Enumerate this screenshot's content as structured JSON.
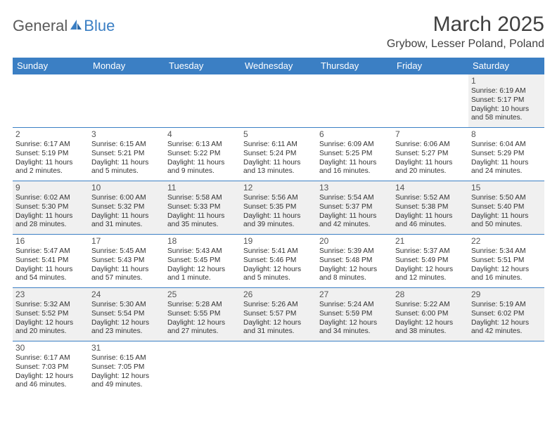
{
  "logo": {
    "text_a": "General",
    "text_b": "Blue"
  },
  "title": "March 2025",
  "location": "Grybow, Lesser Poland, Poland",
  "weekdays": [
    "Sunday",
    "Monday",
    "Tuesday",
    "Wednesday",
    "Thursday",
    "Friday",
    "Saturday"
  ],
  "colors": {
    "header_bg": "#3b7fc4",
    "grey_row": "#f0f0f0"
  },
  "weeks": [
    {
      "shade": "grey",
      "days": [
        null,
        null,
        null,
        null,
        null,
        null,
        {
          "n": "1",
          "sr": "Sunrise: 6:19 AM",
          "ss": "Sunset: 5:17 PM",
          "d1": "Daylight: 10 hours",
          "d2": "and 58 minutes."
        }
      ]
    },
    {
      "shade": "white",
      "days": [
        {
          "n": "2",
          "sr": "Sunrise: 6:17 AM",
          "ss": "Sunset: 5:19 PM",
          "d1": "Daylight: 11 hours",
          "d2": "and 2 minutes."
        },
        {
          "n": "3",
          "sr": "Sunrise: 6:15 AM",
          "ss": "Sunset: 5:21 PM",
          "d1": "Daylight: 11 hours",
          "d2": "and 5 minutes."
        },
        {
          "n": "4",
          "sr": "Sunrise: 6:13 AM",
          "ss": "Sunset: 5:22 PM",
          "d1": "Daylight: 11 hours",
          "d2": "and 9 minutes."
        },
        {
          "n": "5",
          "sr": "Sunrise: 6:11 AM",
          "ss": "Sunset: 5:24 PM",
          "d1": "Daylight: 11 hours",
          "d2": "and 13 minutes."
        },
        {
          "n": "6",
          "sr": "Sunrise: 6:09 AM",
          "ss": "Sunset: 5:25 PM",
          "d1": "Daylight: 11 hours",
          "d2": "and 16 minutes."
        },
        {
          "n": "7",
          "sr": "Sunrise: 6:06 AM",
          "ss": "Sunset: 5:27 PM",
          "d1": "Daylight: 11 hours",
          "d2": "and 20 minutes."
        },
        {
          "n": "8",
          "sr": "Sunrise: 6:04 AM",
          "ss": "Sunset: 5:29 PM",
          "d1": "Daylight: 11 hours",
          "d2": "and 24 minutes."
        }
      ]
    },
    {
      "shade": "grey",
      "days": [
        {
          "n": "9",
          "sr": "Sunrise: 6:02 AM",
          "ss": "Sunset: 5:30 PM",
          "d1": "Daylight: 11 hours",
          "d2": "and 28 minutes."
        },
        {
          "n": "10",
          "sr": "Sunrise: 6:00 AM",
          "ss": "Sunset: 5:32 PM",
          "d1": "Daylight: 11 hours",
          "d2": "and 31 minutes."
        },
        {
          "n": "11",
          "sr": "Sunrise: 5:58 AM",
          "ss": "Sunset: 5:33 PM",
          "d1": "Daylight: 11 hours",
          "d2": "and 35 minutes."
        },
        {
          "n": "12",
          "sr": "Sunrise: 5:56 AM",
          "ss": "Sunset: 5:35 PM",
          "d1": "Daylight: 11 hours",
          "d2": "and 39 minutes."
        },
        {
          "n": "13",
          "sr": "Sunrise: 5:54 AM",
          "ss": "Sunset: 5:37 PM",
          "d1": "Daylight: 11 hours",
          "d2": "and 42 minutes."
        },
        {
          "n": "14",
          "sr": "Sunrise: 5:52 AM",
          "ss": "Sunset: 5:38 PM",
          "d1": "Daylight: 11 hours",
          "d2": "and 46 minutes."
        },
        {
          "n": "15",
          "sr": "Sunrise: 5:50 AM",
          "ss": "Sunset: 5:40 PM",
          "d1": "Daylight: 11 hours",
          "d2": "and 50 minutes."
        }
      ]
    },
    {
      "shade": "white",
      "days": [
        {
          "n": "16",
          "sr": "Sunrise: 5:47 AM",
          "ss": "Sunset: 5:41 PM",
          "d1": "Daylight: 11 hours",
          "d2": "and 54 minutes."
        },
        {
          "n": "17",
          "sr": "Sunrise: 5:45 AM",
          "ss": "Sunset: 5:43 PM",
          "d1": "Daylight: 11 hours",
          "d2": "and 57 minutes."
        },
        {
          "n": "18",
          "sr": "Sunrise: 5:43 AM",
          "ss": "Sunset: 5:45 PM",
          "d1": "Daylight: 12 hours",
          "d2": "and 1 minute."
        },
        {
          "n": "19",
          "sr": "Sunrise: 5:41 AM",
          "ss": "Sunset: 5:46 PM",
          "d1": "Daylight: 12 hours",
          "d2": "and 5 minutes."
        },
        {
          "n": "20",
          "sr": "Sunrise: 5:39 AM",
          "ss": "Sunset: 5:48 PM",
          "d1": "Daylight: 12 hours",
          "d2": "and 8 minutes."
        },
        {
          "n": "21",
          "sr": "Sunrise: 5:37 AM",
          "ss": "Sunset: 5:49 PM",
          "d1": "Daylight: 12 hours",
          "d2": "and 12 minutes."
        },
        {
          "n": "22",
          "sr": "Sunrise: 5:34 AM",
          "ss": "Sunset: 5:51 PM",
          "d1": "Daylight: 12 hours",
          "d2": "and 16 minutes."
        }
      ]
    },
    {
      "shade": "grey",
      "days": [
        {
          "n": "23",
          "sr": "Sunrise: 5:32 AM",
          "ss": "Sunset: 5:52 PM",
          "d1": "Daylight: 12 hours",
          "d2": "and 20 minutes."
        },
        {
          "n": "24",
          "sr": "Sunrise: 5:30 AM",
          "ss": "Sunset: 5:54 PM",
          "d1": "Daylight: 12 hours",
          "d2": "and 23 minutes."
        },
        {
          "n": "25",
          "sr": "Sunrise: 5:28 AM",
          "ss": "Sunset: 5:55 PM",
          "d1": "Daylight: 12 hours",
          "d2": "and 27 minutes."
        },
        {
          "n": "26",
          "sr": "Sunrise: 5:26 AM",
          "ss": "Sunset: 5:57 PM",
          "d1": "Daylight: 12 hours",
          "d2": "and 31 minutes."
        },
        {
          "n": "27",
          "sr": "Sunrise: 5:24 AM",
          "ss": "Sunset: 5:59 PM",
          "d1": "Daylight: 12 hours",
          "d2": "and 34 minutes."
        },
        {
          "n": "28",
          "sr": "Sunrise: 5:22 AM",
          "ss": "Sunset: 6:00 PM",
          "d1": "Daylight: 12 hours",
          "d2": "and 38 minutes."
        },
        {
          "n": "29",
          "sr": "Sunrise: 5:19 AM",
          "ss": "Sunset: 6:02 PM",
          "d1": "Daylight: 12 hours",
          "d2": "and 42 minutes."
        }
      ]
    },
    {
      "shade": "white",
      "days": [
        {
          "n": "30",
          "sr": "Sunrise: 6:17 AM",
          "ss": "Sunset: 7:03 PM",
          "d1": "Daylight: 12 hours",
          "d2": "and 46 minutes."
        },
        {
          "n": "31",
          "sr": "Sunrise: 6:15 AM",
          "ss": "Sunset: 7:05 PM",
          "d1": "Daylight: 12 hours",
          "d2": "and 49 minutes."
        },
        null,
        null,
        null,
        null,
        null
      ]
    }
  ]
}
